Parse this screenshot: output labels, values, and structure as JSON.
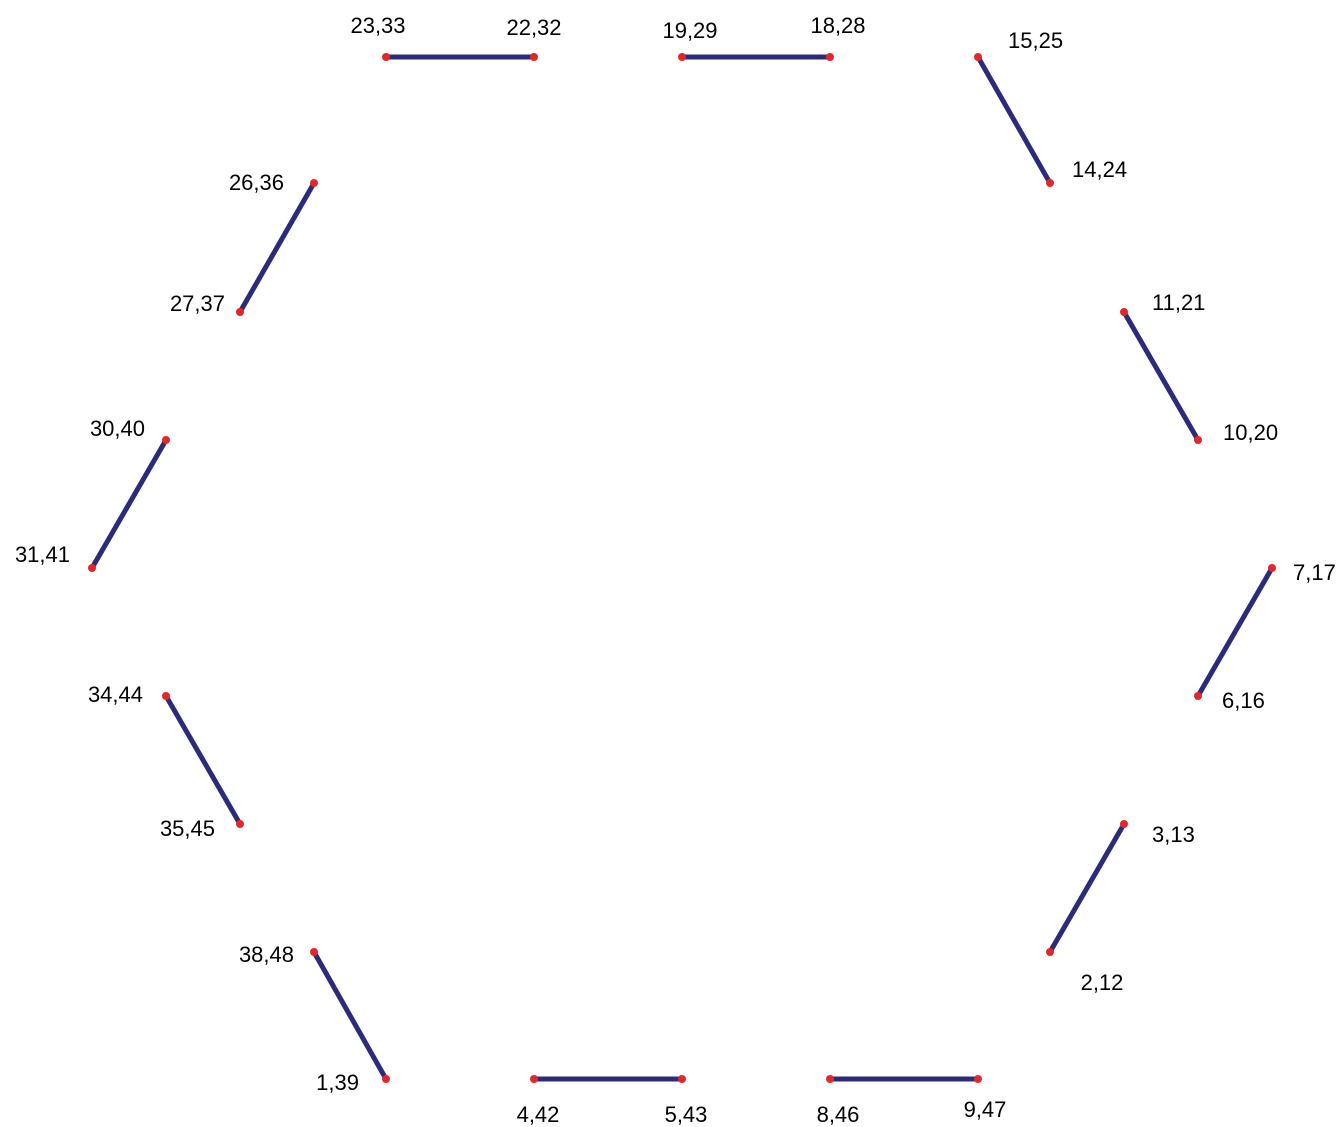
{
  "colors": {
    "edge": "#2b2b7a",
    "node": "#e3262b",
    "label": "#000000",
    "background": "#ffffff"
  },
  "nodes": [
    {
      "id": "n23_33",
      "label": "23,33"
    },
    {
      "id": "n22_32",
      "label": "22,32"
    },
    {
      "id": "n19_29",
      "label": "19,29"
    },
    {
      "id": "n18_28",
      "label": "18,28"
    },
    {
      "id": "n15_25",
      "label": "15,25"
    },
    {
      "id": "n14_24",
      "label": "14,24"
    },
    {
      "id": "n11_21",
      "label": "11,21"
    },
    {
      "id": "n10_20",
      "label": "10,20"
    },
    {
      "id": "n7_17",
      "label": "7,17"
    },
    {
      "id": "n6_16",
      "label": "6,16"
    },
    {
      "id": "n3_13",
      "label": "3,13"
    },
    {
      "id": "n2_12",
      "label": "2,12"
    },
    {
      "id": "n9_47",
      "label": "9,47"
    },
    {
      "id": "n8_46",
      "label": "8,46"
    },
    {
      "id": "n5_43",
      "label": "5,43"
    },
    {
      "id": "n4_42",
      "label": "4,42"
    },
    {
      "id": "n1_39",
      "label": "1,39"
    },
    {
      "id": "n38_48",
      "label": "38,48"
    },
    {
      "id": "n35_45",
      "label": "35,45"
    },
    {
      "id": "n34_44",
      "label": "34,44"
    },
    {
      "id": "n31_41",
      "label": "31,41"
    },
    {
      "id": "n30_40",
      "label": "30,40"
    },
    {
      "id": "n27_37",
      "label": "27,37"
    },
    {
      "id": "n26_36",
      "label": "26,36"
    }
  ],
  "edges": [
    {
      "from": "n23_33",
      "to": "n22_32"
    },
    {
      "from": "n19_29",
      "to": "n18_28"
    },
    {
      "from": "n15_25",
      "to": "n14_24"
    },
    {
      "from": "n11_21",
      "to": "n10_20"
    },
    {
      "from": "n7_17",
      "to": "n6_16"
    },
    {
      "from": "n3_13",
      "to": "n2_12"
    },
    {
      "from": "n9_47",
      "to": "n8_46"
    },
    {
      "from": "n5_43",
      "to": "n4_42"
    },
    {
      "from": "n1_39",
      "to": "n38_48"
    },
    {
      "from": "n35_45",
      "to": "n34_44"
    },
    {
      "from": "n31_41",
      "to": "n30_40"
    },
    {
      "from": "n27_37",
      "to": "n26_36"
    }
  ]
}
